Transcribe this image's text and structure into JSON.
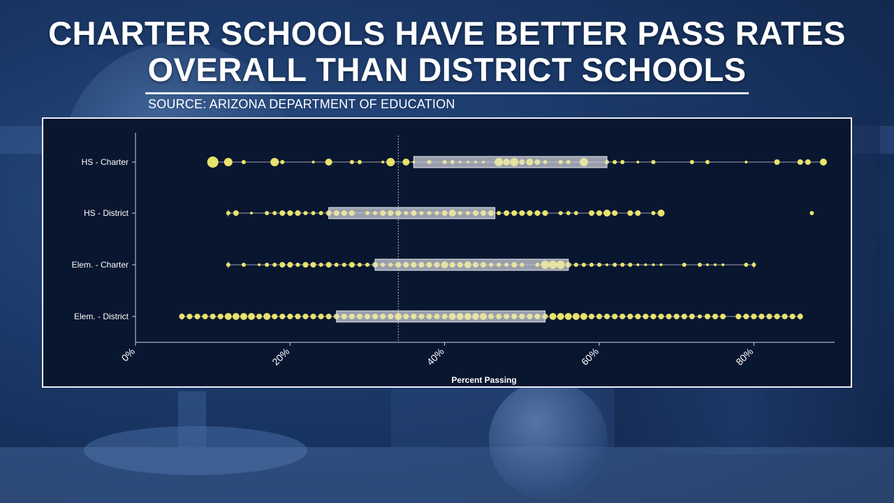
{
  "headline": {
    "line1": "CHARTER SCHOOLS HAVE BETTER PASS RATES",
    "line2": "OVERALL THAN DISTRICT SCHOOLS"
  },
  "source": "SOURCE: ARIZONA DEPARTMENT OF EDUCATION",
  "colors": {
    "point": "#f3ec6e",
    "point_in_box": "#f2eda0",
    "box_fill": "#c9ccd6",
    "whisker": "#9aa0ab",
    "reference_line": "#b9bec8",
    "text": "#ffffff"
  },
  "chart_data": {
    "type": "box-plot with jittered points",
    "xlabel": "Percent Passing",
    "x_range": [
      0,
      90
    ],
    "x_ticks": [
      "0%",
      "20%",
      "40%",
      "60%",
      "80%"
    ],
    "x_tick_values": [
      0,
      20,
      40,
      60,
      80
    ],
    "reference_line": 34,
    "categories": [
      "HS - Charter",
      "HS - District",
      "Elem. - Charter",
      "Elem. - District"
    ],
    "series": [
      {
        "name": "HS - Charter",
        "whisker": [
          10,
          89
        ],
        "box": [
          36,
          61
        ],
        "points": [
          [
            10,
            8
          ],
          [
            12,
            6
          ],
          [
            14,
            3
          ],
          [
            18,
            6
          ],
          [
            19,
            3
          ],
          [
            23,
            2
          ],
          [
            25,
            5
          ],
          [
            28,
            3
          ],
          [
            29,
            3
          ],
          [
            32,
            2
          ],
          [
            33,
            6
          ],
          [
            35,
            5
          ],
          [
            36,
            2
          ],
          [
            38,
            3
          ],
          [
            40,
            3
          ],
          [
            41,
            3
          ],
          [
            42,
            2
          ],
          [
            43,
            2
          ],
          [
            44,
            2
          ],
          [
            45,
            2
          ],
          [
            47,
            6
          ],
          [
            48,
            5
          ],
          [
            49,
            6
          ],
          [
            50,
            4
          ],
          [
            51,
            5
          ],
          [
            52,
            4
          ],
          [
            53,
            3
          ],
          [
            55,
            3
          ],
          [
            56,
            3
          ],
          [
            58,
            6
          ],
          [
            61,
            3
          ],
          [
            62,
            3
          ],
          [
            63,
            3
          ],
          [
            65,
            2
          ],
          [
            67,
            3
          ],
          [
            72,
            3
          ],
          [
            74,
            3
          ],
          [
            79,
            2
          ],
          [
            83,
            4
          ],
          [
            86,
            4
          ],
          [
            87,
            4
          ],
          [
            89,
            5
          ]
        ]
      },
      {
        "name": "HS - District",
        "whisker": [
          12,
          68
        ],
        "box": [
          25,
          46.5
        ],
        "points": [
          [
            12,
            3
          ],
          [
            13,
            4
          ],
          [
            15,
            2
          ],
          [
            17,
            3
          ],
          [
            18,
            3
          ],
          [
            19,
            4
          ],
          [
            20,
            4
          ],
          [
            21,
            4
          ],
          [
            22,
            3
          ],
          [
            23,
            3
          ],
          [
            24,
            3
          ],
          [
            25,
            4
          ],
          [
            26,
            4
          ],
          [
            27,
            4
          ],
          [
            28,
            4
          ],
          [
            30,
            3
          ],
          [
            31,
            3
          ],
          [
            32,
            4
          ],
          [
            33,
            4
          ],
          [
            34,
            4
          ],
          [
            35,
            3
          ],
          [
            36,
            4
          ],
          [
            37,
            3
          ],
          [
            38,
            3
          ],
          [
            39,
            3
          ],
          [
            40,
            4
          ],
          [
            41,
            5
          ],
          [
            42,
            3
          ],
          [
            43,
            3
          ],
          [
            44,
            4
          ],
          [
            45,
            4
          ],
          [
            46,
            4
          ],
          [
            47,
            3
          ],
          [
            48,
            4
          ],
          [
            49,
            4
          ],
          [
            50,
            4
          ],
          [
            51,
            4
          ],
          [
            52,
            4
          ],
          [
            53,
            4
          ],
          [
            55,
            3
          ],
          [
            56,
            3
          ],
          [
            57,
            3
          ],
          [
            59,
            4
          ],
          [
            60,
            4
          ],
          [
            61,
            5
          ],
          [
            62,
            4
          ],
          [
            64,
            4
          ],
          [
            65,
            4
          ],
          [
            67,
            3
          ],
          [
            68,
            5
          ],
          [
            87.5,
            3
          ]
        ]
      },
      {
        "name": "Elem. - Charter",
        "whisker": [
          12,
          80
        ],
        "box": [
          31,
          56
        ],
        "points": [
          [
            12,
            3
          ],
          [
            14,
            3
          ],
          [
            16,
            2
          ],
          [
            17,
            3
          ],
          [
            18,
            3
          ],
          [
            19,
            4
          ],
          [
            20,
            4
          ],
          [
            21,
            3
          ],
          [
            22,
            4
          ],
          [
            23,
            4
          ],
          [
            24,
            3
          ],
          [
            25,
            4
          ],
          [
            26,
            3
          ],
          [
            27,
            3
          ],
          [
            28,
            4
          ],
          [
            29,
            3
          ],
          [
            30,
            3
          ],
          [
            31,
            4
          ],
          [
            32,
            3
          ],
          [
            33,
            3
          ],
          [
            34,
            4
          ],
          [
            35,
            4
          ],
          [
            36,
            4
          ],
          [
            37,
            4
          ],
          [
            38,
            4
          ],
          [
            39,
            4
          ],
          [
            40,
            5
          ],
          [
            41,
            4
          ],
          [
            42,
            4
          ],
          [
            43,
            5
          ],
          [
            44,
            4
          ],
          [
            45,
            4
          ],
          [
            46,
            3
          ],
          [
            47,
            3
          ],
          [
            48,
            3
          ],
          [
            49,
            4
          ],
          [
            50,
            3
          ],
          [
            52,
            3
          ],
          [
            53,
            6
          ],
          [
            54,
            6
          ],
          [
            55,
            6
          ],
          [
            56,
            4
          ],
          [
            57,
            3
          ],
          [
            58,
            3
          ],
          [
            59,
            3
          ],
          [
            60,
            3
          ],
          [
            61,
            2
          ],
          [
            62,
            3
          ],
          [
            63,
            3
          ],
          [
            64,
            3
          ],
          [
            65,
            2
          ],
          [
            66,
            2
          ],
          [
            67,
            2
          ],
          [
            68,
            2
          ],
          [
            71,
            3
          ],
          [
            73,
            3
          ],
          [
            74,
            2
          ],
          [
            75,
            2
          ],
          [
            76,
            2
          ],
          [
            79,
            3
          ],
          [
            80,
            3
          ]
        ]
      },
      {
        "name": "Elem. - District",
        "whisker": [
          6,
          86
        ],
        "box": [
          26,
          53
        ],
        "points": [
          [
            6,
            4
          ],
          [
            7,
            4
          ],
          [
            8,
            4
          ],
          [
            9,
            4
          ],
          [
            10,
            4
          ],
          [
            11,
            4
          ],
          [
            12,
            5
          ],
          [
            13,
            5
          ],
          [
            14,
            5
          ],
          [
            15,
            5
          ],
          [
            16,
            4
          ],
          [
            17,
            5
          ],
          [
            18,
            4
          ],
          [
            19,
            4
          ],
          [
            20,
            4
          ],
          [
            21,
            4
          ],
          [
            22,
            4
          ],
          [
            23,
            4
          ],
          [
            24,
            4
          ],
          [
            25,
            4
          ],
          [
            26,
            4
          ],
          [
            27,
            4
          ],
          [
            28,
            4
          ],
          [
            29,
            4
          ],
          [
            30,
            4
          ],
          [
            31,
            4
          ],
          [
            32,
            4
          ],
          [
            33,
            4
          ],
          [
            34,
            5
          ],
          [
            35,
            4
          ],
          [
            36,
            4
          ],
          [
            37,
            4
          ],
          [
            38,
            4
          ],
          [
            39,
            4
          ],
          [
            40,
            4
          ],
          [
            41,
            5
          ],
          [
            42,
            5
          ],
          [
            43,
            5
          ],
          [
            44,
            5
          ],
          [
            45,
            5
          ],
          [
            46,
            4
          ],
          [
            47,
            4
          ],
          [
            48,
            4
          ],
          [
            49,
            4
          ],
          [
            50,
            4
          ],
          [
            51,
            4
          ],
          [
            52,
            4
          ],
          [
            53,
            4
          ],
          [
            54,
            5
          ],
          [
            55,
            5
          ],
          [
            56,
            5
          ],
          [
            57,
            5
          ],
          [
            58,
            5
          ],
          [
            59,
            4
          ],
          [
            60,
            4
          ],
          [
            61,
            4
          ],
          [
            62,
            4
          ],
          [
            63,
            4
          ],
          [
            64,
            4
          ],
          [
            65,
            4
          ],
          [
            66,
            4
          ],
          [
            67,
            4
          ],
          [
            68,
            4
          ],
          [
            69,
            4
          ],
          [
            70,
            4
          ],
          [
            71,
            4
          ],
          [
            72,
            4
          ],
          [
            73,
            3
          ],
          [
            74,
            4
          ],
          [
            75,
            4
          ],
          [
            76,
            4
          ],
          [
            78,
            4
          ],
          [
            79,
            4
          ],
          [
            80,
            4
          ],
          [
            81,
            4
          ],
          [
            82,
            4
          ],
          [
            83,
            4
          ],
          [
            84,
            4
          ],
          [
            85,
            4
          ],
          [
            86,
            4
          ]
        ]
      }
    ]
  }
}
